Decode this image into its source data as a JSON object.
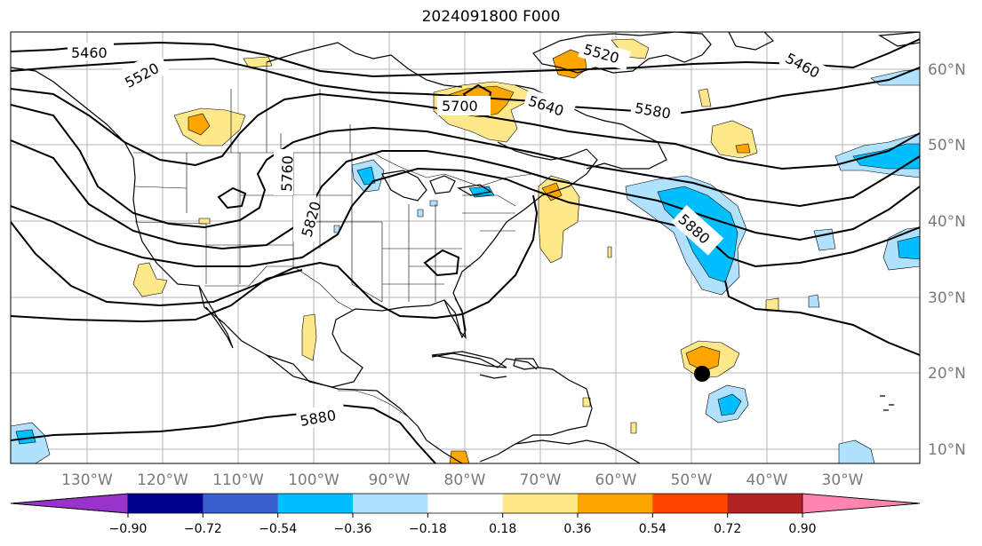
{
  "title": "2024091800 F000",
  "map": {
    "lon_ticks": [
      "130°W",
      "120°W",
      "110°W",
      "100°W",
      "90°W",
      "80°W",
      "70°W",
      "60°W",
      "50°W",
      "40°W",
      "30°W"
    ],
    "lat_ticks": [
      "60°N",
      "50°N",
      "40°N",
      "30°N",
      "20°N",
      "10°N"
    ],
    "contour_labels": [
      "5460",
      "5520",
      "5700",
      "5640",
      "5580",
      "5520",
      "5460",
      "5760",
      "5820",
      "5880",
      "5880"
    ],
    "marker": "storm-center-dot"
  },
  "colorbar": {
    "labels": [
      "−0.90",
      "−0.72",
      "−0.54",
      "−0.36",
      "−0.18",
      "0.18",
      "0.36",
      "0.54",
      "0.72",
      "0.90"
    ],
    "colors": [
      "#9933cc",
      "#00008b",
      "#3a5fcd",
      "#00bfff",
      "#b0e2ff",
      "#ffffff",
      "#ffe88a",
      "#ffa500",
      "#ff4500",
      "#b22222",
      "#ff85b0"
    ]
  }
}
